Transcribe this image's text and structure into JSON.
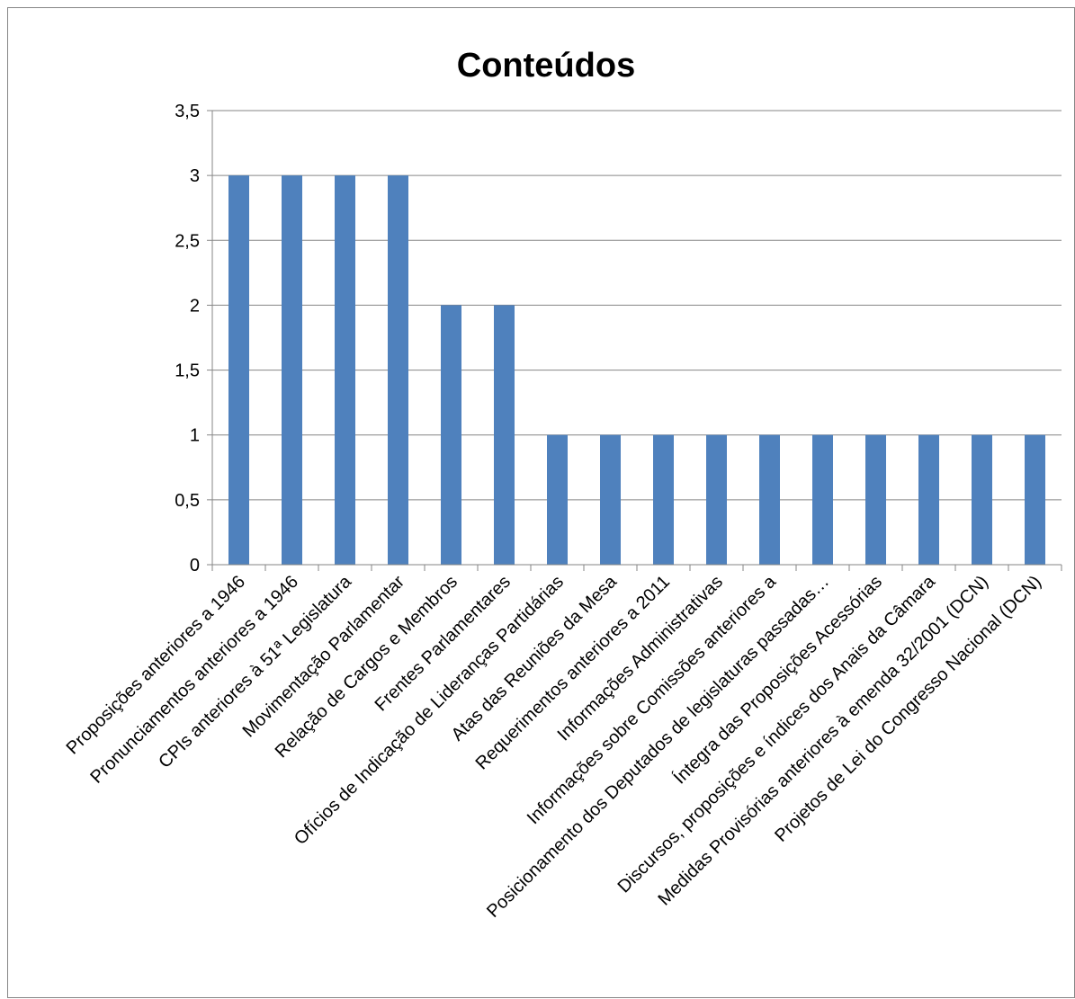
{
  "chart_data": {
    "type": "bar",
    "title": "Conteúdos",
    "xlabel": "",
    "ylabel": "",
    "ylim": [
      0,
      3.5
    ],
    "yticks": [
      "0",
      "0,5",
      "1",
      "1,5",
      "2",
      "2,5",
      "3",
      "3,5"
    ],
    "grid": true,
    "legend": "none",
    "bar_color": "#4F81BD",
    "categories": [
      "Proposições anteriores  a 1946",
      "Pronunciamentos anteriores a 1946",
      "CPIs anteriores à 51ª Legislatura",
      "Movimentação Parlamentar",
      "Relação de Cargos e Membros",
      "Frentes Parlamentares",
      "Ofícios de Indicação de Lideranças Partidárias",
      "Atas das Reuniões da Mesa",
      "Requerimentos anteriores a 2011",
      "Informações Administrativas",
      "Informações sobre Comissões anteriores a",
      "Posicionamento dos Deputados de legislaturas passadas…",
      "Íntegra das Proposições Acessórias",
      "Discursos, proposições e índices dos Anais da Câmara",
      "Medidas Provisórias anteriores à emenda 32/2001 (DCN)",
      "Projetos de Lei do Congresso Nacional (DCN)"
    ],
    "values": [
      3,
      3,
      3,
      3,
      2,
      2,
      1,
      1,
      1,
      1,
      1,
      1,
      1,
      1,
      1,
      1
    ]
  }
}
